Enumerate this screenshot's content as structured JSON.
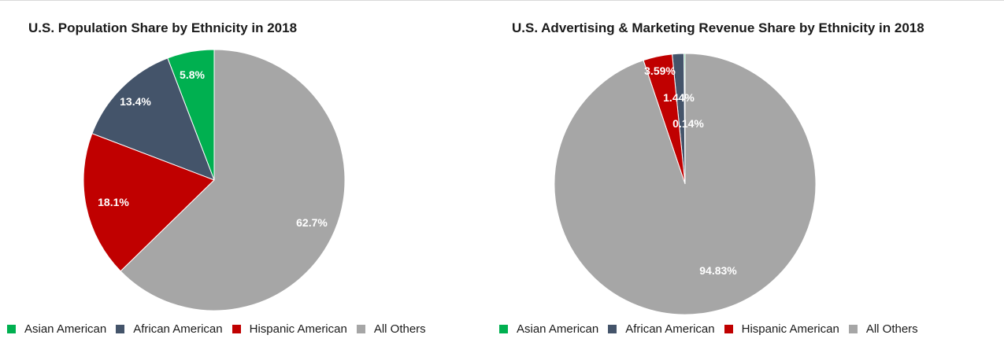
{
  "colors": {
    "asian": "#00b050",
    "african": "#44546a",
    "hispanic": "#c00000",
    "others": "#a6a6a6",
    "label_text": "#ffffff"
  },
  "chart_data": [
    {
      "type": "pie",
      "title": "U.S. Population Share by Ethnicity in 2018",
      "start": "12 o'clock, counter-clockwise",
      "slices": [
        {
          "name": "Asian American",
          "value": 5.8,
          "label": "5.8%",
          "color": "#00b050"
        },
        {
          "name": "African American",
          "value": 13.4,
          "label": "13.4%",
          "color": "#44546a"
        },
        {
          "name": "Hispanic American",
          "value": 18.1,
          "label": "18.1%",
          "color": "#c00000"
        },
        {
          "name": "All Others",
          "value": 62.7,
          "label": "62.7%",
          "color": "#a6a6a6"
        }
      ],
      "legend": [
        "Asian American",
        "African American",
        "Hispanic American",
        "All Others"
      ],
      "legend_position": "bottom"
    },
    {
      "type": "pie",
      "title": "U.S. Advertising & Marketing Revenue Share by Ethnicity in 2018",
      "start": "12 o'clock, counter-clockwise",
      "slices": [
        {
          "name": "Asian American",
          "value": 0.14,
          "label": "0.14%",
          "color": "#00b050"
        },
        {
          "name": "African American",
          "value": 1.44,
          "label": "1.44%",
          "color": "#44546a"
        },
        {
          "name": "Hispanic American",
          "value": 3.59,
          "label": "3.59%",
          "color": "#c00000"
        },
        {
          "name": "All Others",
          "value": 94.83,
          "label": "94.83%",
          "color": "#a6a6a6"
        }
      ],
      "legend": [
        "Asian American",
        "African American",
        "Hispanic American",
        "All Others"
      ],
      "legend_position": "bottom"
    }
  ]
}
